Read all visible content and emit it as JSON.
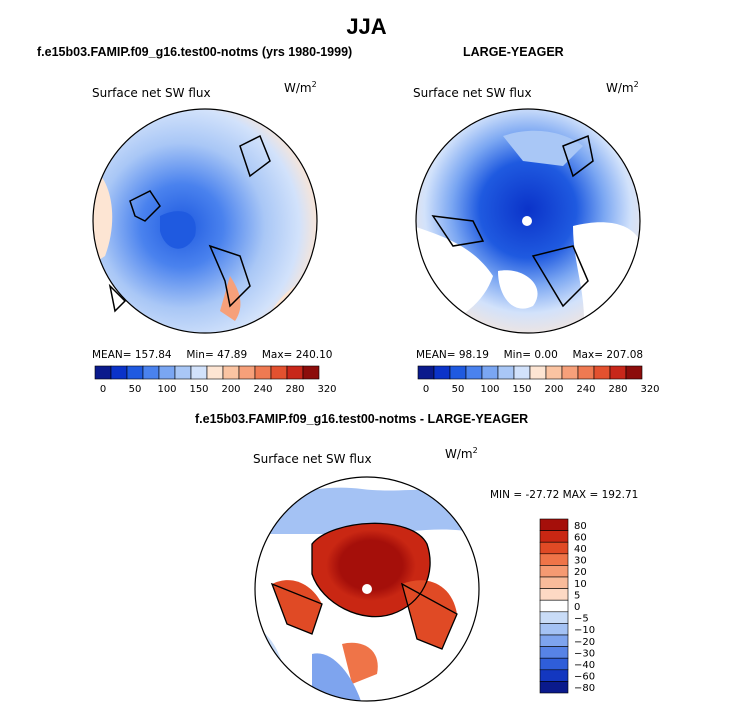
{
  "page": {
    "title": "JJA",
    "left_title": "f.e15b03.FAMIP.f09_g16.test00-notms (yrs 1980-1999)",
    "right_title": "LARGE-YEAGER",
    "bottom_title": "f.e15b03.FAMIP.f09_g16.test00-notms - LARGE-YEAGER"
  },
  "chart_data": [
    {
      "type": "heatmap",
      "projection": "polar-stereographic-north",
      "title": "Surface net SW flux",
      "units": "W/m2",
      "units_base": "W/m",
      "units_sup": "2",
      "stats": {
        "mean_label": "MEAN=",
        "mean": "157.84",
        "min_label": "Min=",
        "min": "47.89",
        "max_label": "Max=",
        "max": "240.10"
      },
      "colorbar": {
        "orientation": "horizontal",
        "levels": [
          0,
          50,
          100,
          150,
          200,
          240,
          280,
          320
        ],
        "tick_labels": [
          "0",
          "50",
          "100",
          "150",
          "200",
          "240",
          "280",
          "320"
        ],
        "colors": [
          "#0a1a8c",
          "#0b33c9",
          "#1f5ae0",
          "#4a82ee",
          "#7aa6f2",
          "#a9c7f6",
          "#d2e2fb",
          "#fde5d3",
          "#fbc4a2",
          "#f6a07a",
          "#ef7a52",
          "#e3512f",
          "#c8271a",
          "#8c0d0b"
        ]
      }
    },
    {
      "type": "heatmap",
      "projection": "polar-stereographic-north",
      "title": "Surface net SW flux",
      "units": "W/m2",
      "units_base": "W/m",
      "units_sup": "2",
      "stats": {
        "mean_label": "MEAN=",
        "mean": "98.19",
        "min_label": "Min=",
        "min": "0.00",
        "max_label": "Max=",
        "max": "207.08"
      },
      "colorbar": {
        "orientation": "horizontal",
        "levels": [
          0,
          50,
          100,
          150,
          200,
          240,
          280,
          320
        ],
        "tick_labels": [
          "0",
          "50",
          "100",
          "150",
          "200",
          "240",
          "280",
          "320"
        ],
        "colors": [
          "#0a1a8c",
          "#0b33c9",
          "#1f5ae0",
          "#4a82ee",
          "#7aa6f2",
          "#a9c7f6",
          "#d2e2fb",
          "#fde5d3",
          "#fbc4a2",
          "#f6a07a",
          "#ef7a52",
          "#e3512f",
          "#c8271a",
          "#8c0d0b"
        ]
      }
    },
    {
      "type": "heatmap",
      "projection": "polar-stereographic-north",
      "title": "Surface net SW flux",
      "units": "W/m2",
      "units_base": "W/m",
      "units_sup": "2",
      "stats_text": "MIN = -27.72 MAX = 192.71",
      "colorbar": {
        "orientation": "vertical",
        "levels": [
          80,
          60,
          40,
          30,
          20,
          10,
          5,
          0,
          -5,
          -10,
          -20,
          -30,
          -40,
          -60,
          -80
        ],
        "tick_labels": [
          "80",
          "60",
          "40",
          "30",
          "20",
          "10",
          "5",
          "0",
          "−5",
          "−10",
          "−20",
          "−30",
          "−40",
          "−60",
          "−80"
        ],
        "colors": [
          "#a50f0a",
          "#c92713",
          "#e04a25",
          "#ef7448",
          "#f59a72",
          "#f9bb9a",
          "#fdd9c4",
          "#ffffff",
          "#c9dcf7",
          "#a4c2f4",
          "#7ea4ee",
          "#5783e6",
          "#2f5ed9",
          "#1337c0",
          "#0a1a8c"
        ]
      }
    }
  ]
}
